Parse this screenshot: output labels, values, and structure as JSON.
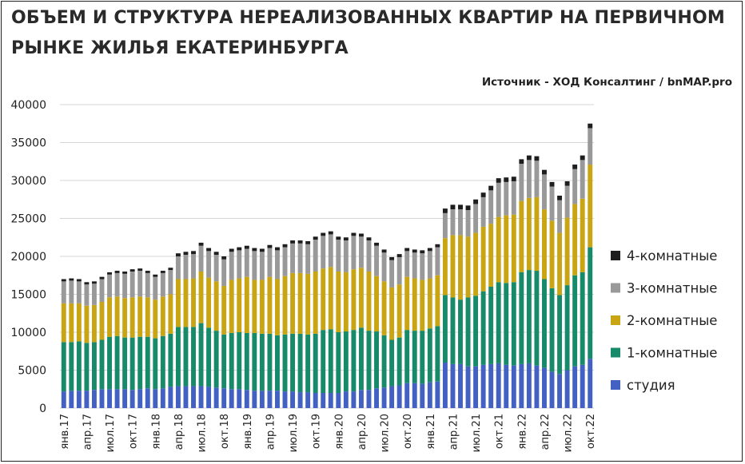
{
  "title_line1": "ОБЪЕМ И СТРУКТУРА НЕРЕАЛИЗОВАННЫХ КВАРТИР НА ПЕРВИЧНОМ",
  "title_line2": "РЫНКЕ ЖИЛЬЯ ЕКАТЕРИНБУРГА",
  "source": "Источник - ХОД Консалтинг  /  bnMAP.pro",
  "colors": {
    "studio": "#4361c2",
    "one_room": "#178a6a",
    "two_room": "#c9a514",
    "three_room": "#999999",
    "four_room": "#1e1e1e"
  },
  "chart_data": {
    "type": "bar",
    "stacked": true,
    "ylim": [
      0,
      40000
    ],
    "yticks": [
      0,
      5000,
      10000,
      15000,
      20000,
      25000,
      30000,
      35000,
      40000
    ],
    "grid": "horizontal",
    "legend_position": "right",
    "categories": [
      "янв.17",
      "фев.17",
      "мар.17",
      "апр.17",
      "май.17",
      "июн.17",
      "июл.17",
      "авг.17",
      "сен.17",
      "окт.17",
      "ноя.17",
      "дек.17",
      "янв.18",
      "фев.18",
      "мар.18",
      "апр.18",
      "май.18",
      "июн.18",
      "июл.18",
      "авг.18",
      "сен.18",
      "окт.18",
      "ноя.18",
      "дек.18",
      "янв.19",
      "фев.19",
      "мар.19",
      "апр.19",
      "май.19",
      "июн.19",
      "июл.19",
      "авг.19",
      "сен.19",
      "окт.19",
      "ноя.19",
      "дек.19",
      "янв.20",
      "фев.20",
      "мар.20",
      "апр.20",
      "май.20",
      "июн.20",
      "июл.20",
      "авг.20",
      "сен.20",
      "окт.20",
      "ноя.20",
      "дек.20",
      "янв.21",
      "фев.21",
      "мар.21",
      "апр.21",
      "май.21",
      "июн.21",
      "июл.21",
      "авг.21",
      "сен.21",
      "окт.21",
      "ноя.21",
      "дек.21",
      "янв.22",
      "фев.22",
      "мар.22",
      "апр.22",
      "май.22",
      "июн.22",
      "июл.22",
      "авг.22",
      "сен.22",
      "окт.22"
    ],
    "tick_labels": [
      {
        "index": 0,
        "label": "янв.17"
      },
      {
        "index": 3,
        "label": "апр.17"
      },
      {
        "index": 6,
        "label": "июл.17"
      },
      {
        "index": 9,
        "label": "окт.17"
      },
      {
        "index": 12,
        "label": "янв.18"
      },
      {
        "index": 15,
        "label": "апр.18"
      },
      {
        "index": 18,
        "label": "июл.18"
      },
      {
        "index": 21,
        "label": "окт.18"
      },
      {
        "index": 24,
        "label": "янв.19"
      },
      {
        "index": 27,
        "label": "апр.19"
      },
      {
        "index": 30,
        "label": "июл.19"
      },
      {
        "index": 33,
        "label": "окт.19"
      },
      {
        "index": 36,
        "label": "янв.20"
      },
      {
        "index": 39,
        "label": "апр.20"
      },
      {
        "index": 42,
        "label": "июл.20"
      },
      {
        "index": 45,
        "label": "окт.20"
      },
      {
        "index": 48,
        "label": "янв.21"
      },
      {
        "index": 51,
        "label": "апр.21"
      },
      {
        "index": 54,
        "label": "июл.21"
      },
      {
        "index": 57,
        "label": "окт.21"
      },
      {
        "index": 60,
        "label": "янв.22"
      },
      {
        "index": 63,
        "label": "апр.22"
      },
      {
        "index": 66,
        "label": "июл.22"
      },
      {
        "index": 69,
        "label": "окт.22"
      }
    ],
    "series": [
      {
        "name": "студия",
        "color_key": "studio",
        "values": [
          2200,
          2300,
          2300,
          2300,
          2400,
          2500,
          2500,
          2500,
          2500,
          2400,
          2500,
          2600,
          2500,
          2600,
          2800,
          2900,
          2900,
          2900,
          2900,
          2800,
          2700,
          2600,
          2500,
          2500,
          2400,
          2300,
          2300,
          2300,
          2300,
          2200,
          2200,
          2100,
          2100,
          2000,
          2000,
          2000,
          2000,
          2200,
          2200,
          2400,
          2400,
          2600,
          2700,
          2900,
          3000,
          3300,
          3300,
          3200,
          3400,
          3500,
          6000,
          5800,
          5800,
          5500,
          5500,
          5700,
          5800,
          5900,
          5700,
          5600,
          5800,
          5900,
          5600,
          5300,
          4800,
          4500,
          5000,
          5500,
          5700,
          6500
        ]
      },
      {
        "name": "1-комнатные",
        "color_key": "one_room",
        "values": [
          6500,
          6400,
          6500,
          6300,
          6300,
          6500,
          6900,
          7000,
          6800,
          6900,
          6900,
          6800,
          6700,
          6900,
          7000,
          7800,
          7800,
          7800,
          8300,
          7800,
          7500,
          7100,
          7400,
          7500,
          7500,
          7600,
          7500,
          7500,
          7300,
          7500,
          7600,
          7700,
          7600,
          7800,
          8300,
          8400,
          8000,
          7900,
          8100,
          8200,
          7800,
          7500,
          6900,
          6100,
          6300,
          7000,
          6900,
          7000,
          7100,
          7300,
          8900,
          8800,
          8500,
          9100,
          9300,
          9700,
          10200,
          10700,
          10800,
          11000,
          12100,
          12300,
          12500,
          11700,
          11000,
          10400,
          11200,
          12000,
          12200,
          14700
        ]
      },
      {
        "name": "2-комнатные",
        "color_key": "two_room",
        "values": [
          5100,
          5100,
          5000,
          4900,
          4900,
          5000,
          5200,
          5200,
          5200,
          5300,
          5300,
          5200,
          5100,
          5200,
          5200,
          6300,
          6300,
          6400,
          6800,
          6600,
          6500,
          6400,
          7000,
          7100,
          7400,
          7000,
          7100,
          7500,
          7400,
          7700,
          8000,
          8000,
          8000,
          8200,
          8100,
          8200,
          8000,
          7800,
          8000,
          7900,
          7800,
          7300,
          7100,
          6900,
          7000,
          7000,
          6900,
          6700,
          6600,
          6700,
          7500,
          8200,
          8500,
          8000,
          8300,
          8500,
          8300,
          8600,
          8900,
          8900,
          9400,
          9500,
          9700,
          9200,
          8900,
          8200,
          8900,
          9400,
          9700,
          10900
        ]
      },
      {
        "name": "3-комнатные",
        "color_key": "three_room",
        "values": [
          2900,
          3000,
          2900,
          2800,
          2800,
          3000,
          3000,
          3100,
          3200,
          3400,
          3400,
          3200,
          3000,
          3100,
          3200,
          3000,
          3200,
          3200,
          3400,
          3500,
          3500,
          3500,
          3700,
          3700,
          3700,
          3800,
          3700,
          3800,
          3800,
          3800,
          3900,
          3900,
          3900,
          4200,
          4300,
          4300,
          4200,
          4200,
          4400,
          4100,
          4100,
          4000,
          3800,
          3600,
          3600,
          3400,
          3400,
          3500,
          3600,
          3700,
          3300,
          3400,
          3400,
          3500,
          3800,
          3900,
          4400,
          4500,
          4400,
          4400,
          4900,
          5000,
          4800,
          4600,
          4500,
          4300,
          4200,
          4600,
          5100,
          4800
        ]
      },
      {
        "name": "4-комнатные",
        "color_key": "four_room",
        "values": [
          300,
          300,
          300,
          300,
          300,
          300,
          300,
          300,
          300,
          300,
          300,
          300,
          300,
          300,
          300,
          400,
          400,
          400,
          400,
          400,
          400,
          400,
          400,
          400,
          400,
          400,
          400,
          400,
          400,
          400,
          400,
          400,
          400,
          400,
          400,
          400,
          400,
          400,
          400,
          400,
          400,
          400,
          400,
          400,
          400,
          400,
          400,
          400,
          400,
          400,
          600,
          600,
          600,
          600,
          600,
          600,
          600,
          600,
          600,
          600,
          600,
          600,
          600,
          600,
          600,
          600,
          600,
          600,
          600,
          600
        ]
      }
    ],
    "legend": [
      "4-комнатные",
      "3-комнатные",
      "2-комнатные",
      "1-комнатные",
      "студия"
    ]
  }
}
